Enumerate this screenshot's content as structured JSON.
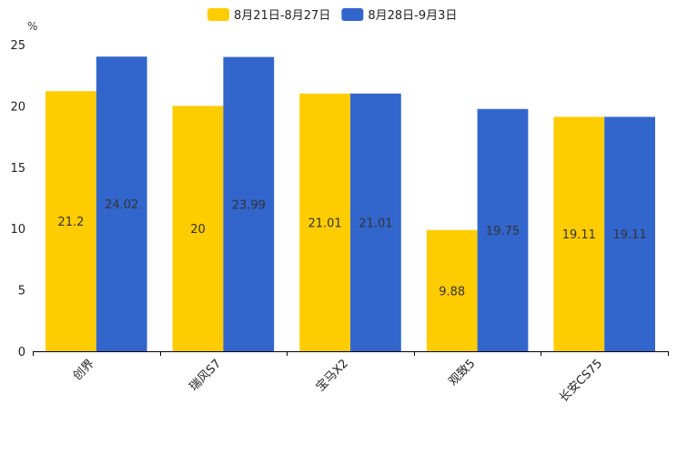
{
  "chart_data": {
    "type": "bar",
    "title": "",
    "ylabel": "%",
    "xlabel": "",
    "ylim": [
      0,
      25
    ],
    "yticks": [
      0,
      5,
      10,
      15,
      20,
      25
    ],
    "grid": false,
    "legend_position": "top-center",
    "categories": [
      "创界",
      "瑞风S7",
      "宝马X2",
      "观致5",
      "长安CS75"
    ],
    "series": [
      {
        "name": "8月21日-8月27日",
        "color": "#FFCC00",
        "values": [
          21.2,
          20,
          21.01,
          9.88,
          19.11
        ]
      },
      {
        "name": "8月28日-9月3日",
        "color": "#3366CC",
        "values": [
          24.02,
          23.99,
          21.01,
          19.75,
          19.11
        ]
      }
    ]
  }
}
